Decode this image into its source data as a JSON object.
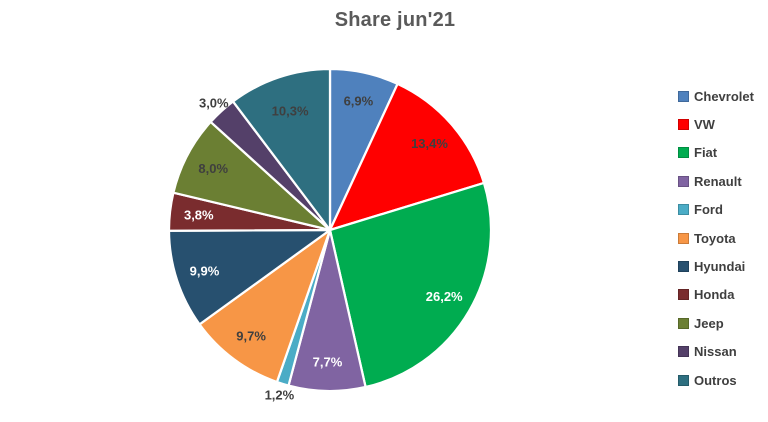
{
  "chart_data": {
    "type": "pie",
    "title": "Share jun'21",
    "legend_position": "right",
    "value_unit": "percent",
    "decimal_separator": ",",
    "slices": [
      {
        "name": "Chevrolet",
        "value": 6.9,
        "label": "6,9%",
        "color": "#4F81BD",
        "label_color": "#3F3F3F",
        "label_position": "inside"
      },
      {
        "name": "VW",
        "value": 13.4,
        "label": "13,4%",
        "color": "#FF0000",
        "label_color": "#3F3F3F",
        "label_position": "inside"
      },
      {
        "name": "Fiat",
        "value": 26.2,
        "label": "26,2%",
        "color": "#00AC50",
        "label_color": "#FFFFFF",
        "label_position": "inside"
      },
      {
        "name": "Renault",
        "value": 7.7,
        "label": "7,7%",
        "color": "#8064A2",
        "label_color": "#FFFFFF",
        "label_position": "inside"
      },
      {
        "name": "Ford",
        "value": 1.2,
        "label": "1,2%",
        "color": "#4BACC6",
        "label_color": "#3F3F3F",
        "label_position": "outside"
      },
      {
        "name": "Toyota",
        "value": 9.7,
        "label": "9,7%",
        "color": "#F79646",
        "label_color": "#3F3F3F",
        "label_position": "inside"
      },
      {
        "name": "Hyundai",
        "value": 9.9,
        "label": "9,9%",
        "color": "#27506F",
        "label_color": "#FFFFFF",
        "label_position": "inside"
      },
      {
        "name": "Honda",
        "value": 3.8,
        "label": "3,8%",
        "color": "#7A2C2E",
        "label_color": "#FFFFFF",
        "label_position": "inside"
      },
      {
        "name": "Jeep",
        "value": 8.0,
        "label": "8,0%",
        "color": "#6B7F33",
        "label_color": "#3F3F3F",
        "label_position": "inside"
      },
      {
        "name": "Nissan",
        "value": 3.0,
        "label": "3,0%",
        "color": "#544069",
        "label_color": "#3F3F3F",
        "label_position": "outside"
      },
      {
        "name": "Outros",
        "value": 10.3,
        "label": "10,3%",
        "color": "#2E6F80",
        "label_color": "#3F3F3F",
        "label_position": "outside_near"
      }
    ],
    "styles": {
      "title_color": "#5A5A5A",
      "legend_text_color": "#3F3F3F",
      "slice_border_color": "#FFFFFF",
      "background": "#FFFFFF"
    }
  }
}
